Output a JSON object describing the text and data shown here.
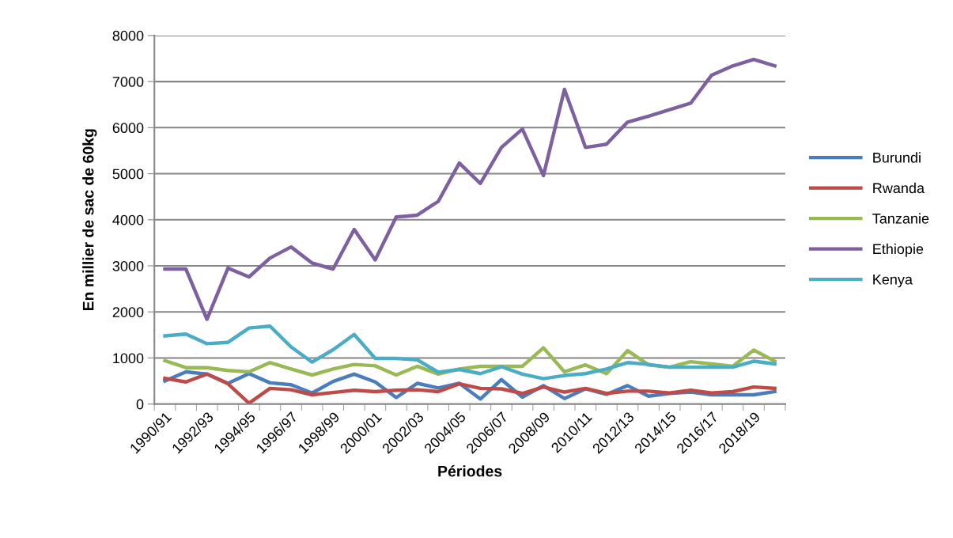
{
  "chart_data": {
    "type": "line",
    "xlabel": "Périodes",
    "ylabel": "En millier de sac de 60kg",
    "categories": [
      "1990/91",
      null,
      "1992/93",
      null,
      "1994/95",
      null,
      "1996/97",
      null,
      "1998/99",
      null,
      "2000/01",
      null,
      "2002/03",
      null,
      "2004/05",
      null,
      "2006/07",
      null,
      "2008/09",
      null,
      "2010/11",
      null,
      "2012/13",
      null,
      "2014/15",
      null,
      "2016/17",
      null,
      "2018/19",
      null
    ],
    "series": [
      {
        "name": "Burundi",
        "color": "#4a7ebb",
        "values": [
          500,
          700,
          650,
          450,
          660,
          460,
          420,
          240,
          490,
          650,
          480,
          140,
          450,
          350,
          450,
          110,
          530,
          150,
          400,
          120,
          330,
          210,
          400,
          170,
          230,
          260,
          200,
          200,
          200,
          270
        ]
      },
      {
        "name": "Rwanda",
        "color": "#be4b48",
        "values": [
          560,
          480,
          650,
          440,
          20,
          340,
          310,
          200,
          250,
          300,
          270,
          300,
          310,
          270,
          440,
          340,
          330,
          230,
          370,
          260,
          340,
          230,
          280,
          280,
          240,
          300,
          240,
          270,
          370,
          340
        ]
      },
      {
        "name": "Tanzanie",
        "color": "#98b954",
        "values": [
          940,
          790,
          790,
          730,
          700,
          900,
          760,
          630,
          760,
          860,
          830,
          630,
          820,
          650,
          760,
          820,
          820,
          820,
          1220,
          700,
          850,
          660,
          1160,
          850,
          800,
          920,
          870,
          820,
          1170,
          930
        ]
      },
      {
        "name": "Ethiopie",
        "color": "#7d60a0",
        "values": [
          2930,
          2930,
          1840,
          2950,
          2760,
          3170,
          3410,
          3060,
          2930,
          3790,
          3130,
          4060,
          4100,
          4400,
          5230,
          4790,
          5570,
          5970,
          4960,
          6830,
          5570,
          5640,
          6120,
          6250,
          6390,
          6530,
          7140,
          7340,
          7480,
          7340
        ]
      },
      {
        "name": "Kenya",
        "color": "#4bacc6",
        "values": [
          1480,
          1520,
          1310,
          1340,
          1650,
          1690,
          1240,
          910,
          1180,
          1510,
          990,
          990,
          960,
          690,
          750,
          660,
          810,
          650,
          550,
          620,
          660,
          760,
          900,
          860,
          800,
          800,
          800,
          800,
          930,
          870
        ]
      }
    ],
    "ylim": [
      0,
      8000
    ],
    "yticks": [
      0,
      1000,
      2000,
      3000,
      4000,
      5000,
      6000,
      7000,
      8000
    ],
    "grid": "y",
    "legend": "right",
    "marker": "none",
    "line_style": "solid"
  }
}
